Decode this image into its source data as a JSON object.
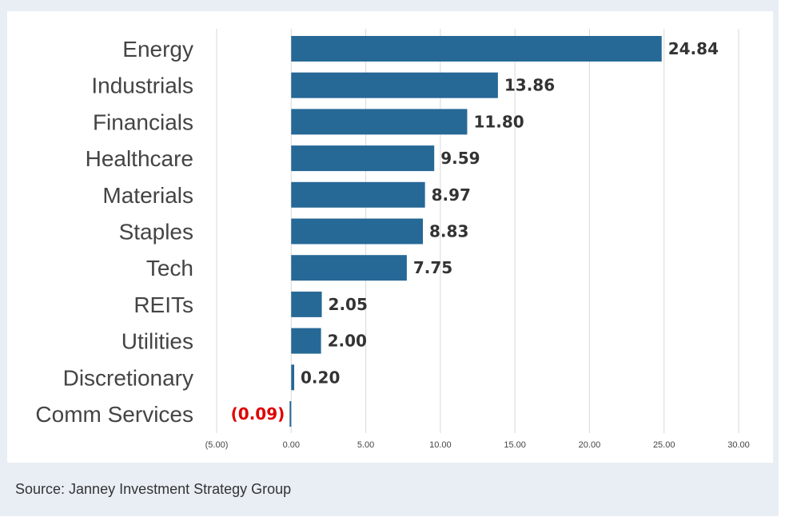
{
  "chart_data": {
    "type": "bar",
    "orientation": "horizontal",
    "categories": [
      "Energy",
      "Industrials",
      "Financials",
      "Healthcare",
      "Materials",
      "Staples",
      "Tech",
      "REITs",
      "Utilities",
      "Discretionary",
      "Comm Services"
    ],
    "values": [
      24.84,
      13.86,
      11.8,
      9.59,
      8.97,
      8.83,
      7.75,
      2.05,
      2.0,
      0.2,
      -0.09
    ],
    "value_labels": [
      "24.84",
      "13.86",
      "11.80",
      "9.59",
      "8.97",
      "8.83",
      "7.75",
      "2.05",
      "2.00",
      "0.20",
      "(0.09)"
    ],
    "xlim": [
      -5,
      30
    ],
    "ticks": [
      -5,
      0,
      5,
      10,
      15,
      20,
      25,
      30
    ],
    "tick_labels": [
      "(5.00)",
      "0.00",
      "5.00",
      "10.00",
      "15.00",
      "20.00",
      "25.00",
      "30.00"
    ],
    "grid": true,
    "title": "",
    "xlabel": "",
    "ylabel": ""
  },
  "colors": {
    "bar": "#266896",
    "positive_text": "#333333",
    "negative_text": "#e00000",
    "grid": "#d9d9d9",
    "panel": "#e9eef5"
  },
  "source": "Source: Janney Investment Strategy Group"
}
